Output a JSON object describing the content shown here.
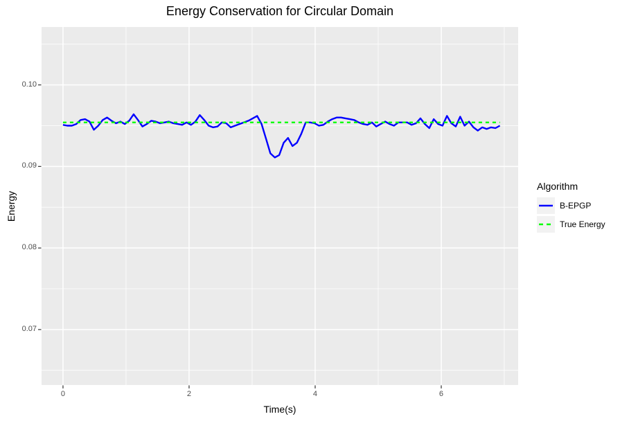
{
  "colors": {
    "figure_background": "#FFFFFF",
    "panel_background": "#EBEBEB",
    "gridline": "#FFFFFF",
    "tick_mark": "#333333",
    "tick_text": "#4D4D4D",
    "text": "#000000",
    "legend_key_background": "#F2F2F2"
  },
  "chart_data": {
    "type": "line",
    "title": "Energy Conservation for Circular Domain",
    "xlabel": "Time(s)",
    "ylabel": "Energy",
    "legend_title": "Algorithm",
    "legend_position": "right",
    "grid": true,
    "x_domain": [
      -0.34,
      7.22
    ],
    "y_domain": [
      0.0632,
      0.1071
    ],
    "x_ticks": [
      0,
      2,
      4,
      6
    ],
    "x_tick_labels": [
      "0",
      "2",
      "4",
      "6"
    ],
    "x_minor_ticks": [
      1,
      3,
      5,
      7
    ],
    "y_ticks": [
      0.1,
      0.09,
      0.08,
      0.07
    ],
    "y_tick_labels": [
      "0.10",
      "0.09",
      "0.08",
      "0.07"
    ],
    "y_minor_ticks": [
      0.105,
      0.095,
      0.085,
      0.075,
      0.065
    ],
    "series": [
      {
        "name": "B-EPGP",
        "color": "#0000FF",
        "style": "solid",
        "x": [
          0,
          0.07,
          0.14,
          0.21,
          0.28,
          0.35,
          0.42,
          0.49,
          0.56,
          0.63,
          0.7,
          0.77,
          0.84,
          0.91,
          0.98,
          1.05,
          1.12,
          1.19,
          1.26,
          1.33,
          1.4,
          1.47,
          1.54,
          1.61,
          1.68,
          1.75,
          1.82,
          1.89,
          1.96,
          2.03,
          2.1,
          2.17,
          2.24,
          2.31,
          2.38,
          2.45,
          2.52,
          2.59,
          2.66,
          2.73,
          2.8,
          2.87,
          2.94,
          3.01,
          3.08,
          3.15,
          3.22,
          3.29,
          3.36,
          3.43,
          3.5,
          3.57,
          3.64,
          3.71,
          3.78,
          3.85,
          3.92,
          3.99,
          4.06,
          4.13,
          4.2,
          4.27,
          4.34,
          4.41,
          4.48,
          4.55,
          4.62,
          4.69,
          4.76,
          4.83,
          4.9,
          4.97,
          5.04,
          5.11,
          5.18,
          5.25,
          5.32,
          5.39,
          5.46,
          5.53,
          5.6,
          5.67,
          5.74,
          5.81,
          5.88,
          5.95,
          6.02,
          6.09,
          6.16,
          6.23,
          6.3,
          6.37,
          6.44,
          6.51,
          6.58,
          6.65,
          6.72,
          6.79,
          6.86,
          6.93
        ],
        "y": [
          0.0951,
          0.095,
          0.095,
          0.0952,
          0.0957,
          0.0958,
          0.0955,
          0.0945,
          0.095,
          0.0957,
          0.096,
          0.0956,
          0.0953,
          0.0955,
          0.0952,
          0.0956,
          0.0964,
          0.0957,
          0.0949,
          0.0952,
          0.0956,
          0.0955,
          0.0953,
          0.0954,
          0.0955,
          0.0953,
          0.0952,
          0.0951,
          0.0954,
          0.0951,
          0.0955,
          0.0963,
          0.0957,
          0.095,
          0.0948,
          0.0949,
          0.0954,
          0.0953,
          0.0948,
          0.095,
          0.0952,
          0.0954,
          0.0956,
          0.0959,
          0.0962,
          0.0952,
          0.0934,
          0.0916,
          0.0911,
          0.0914,
          0.0929,
          0.0935,
          0.0925,
          0.0929,
          0.094,
          0.0954,
          0.0954,
          0.0953,
          0.095,
          0.0951,
          0.0955,
          0.0958,
          0.096,
          0.096,
          0.0959,
          0.0958,
          0.0957,
          0.0954,
          0.0952,
          0.0951,
          0.0954,
          0.0949,
          0.0952,
          0.0955,
          0.0952,
          0.095,
          0.0954,
          0.0954,
          0.0954,
          0.0951,
          0.0953,
          0.0959,
          0.0952,
          0.0947,
          0.0958,
          0.0952,
          0.095,
          0.0962,
          0.0953,
          0.0949,
          0.0961,
          0.095,
          0.0955,
          0.0948,
          0.0944,
          0.0948,
          0.0946,
          0.0948,
          0.0947,
          0.095
        ]
      },
      {
        "name": "True Energy",
        "color": "#00FF00",
        "style": "dashed",
        "x": [
          0,
          6.93
        ],
        "y": [
          0.0954,
          0.0954
        ]
      }
    ]
  }
}
